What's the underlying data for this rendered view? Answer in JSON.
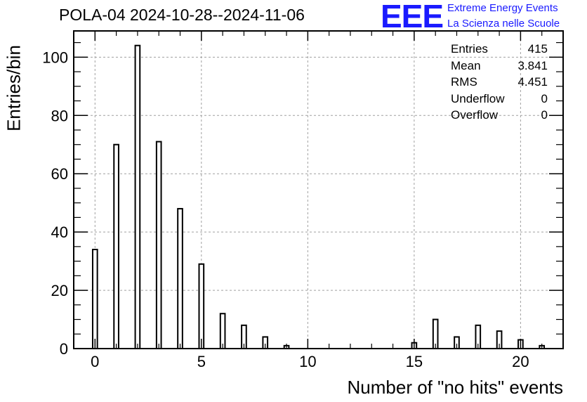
{
  "chart_data": {
    "type": "bar",
    "title": "POLA-04 2024-10-28--2024-11-06",
    "xlabel": "Number of \"no hits\" events",
    "ylabel": "Entries/bin",
    "xlim": [
      -1,
      22
    ],
    "ylim": [
      0,
      109
    ],
    "x_ticks": [
      0,
      5,
      10,
      15,
      20
    ],
    "y_ticks": [
      0,
      20,
      40,
      60,
      80,
      100
    ],
    "grid": true,
    "bins": [
      {
        "x": 0,
        "value": 34
      },
      {
        "x": 1,
        "value": 70
      },
      {
        "x": 2,
        "value": 104
      },
      {
        "x": 3,
        "value": 71
      },
      {
        "x": 4,
        "value": 48
      },
      {
        "x": 5,
        "value": 29
      },
      {
        "x": 6,
        "value": 12
      },
      {
        "x": 7,
        "value": 8
      },
      {
        "x": 8,
        "value": 4
      },
      {
        "x": 9,
        "value": 1
      },
      {
        "x": 15,
        "value": 2
      },
      {
        "x": 16,
        "value": 10
      },
      {
        "x": 17,
        "value": 4
      },
      {
        "x": 18,
        "value": 8
      },
      {
        "x": 19,
        "value": 6
      },
      {
        "x": 20,
        "value": 3
      },
      {
        "x": 21,
        "value": 1
      }
    ],
    "stats": [
      {
        "label": "Entries",
        "value": "415"
      },
      {
        "label": "Mean",
        "value": "3.841"
      },
      {
        "label": "RMS",
        "value": "4.451"
      },
      {
        "label": "Underflow",
        "value": "0"
      },
      {
        "label": "Overflow",
        "value": "0"
      }
    ]
  },
  "logo": {
    "mark": "EEE",
    "line1": "Extreme Energy Events",
    "line2": "La Scienza nelle Scuole",
    "color": "#1a1aff"
  }
}
